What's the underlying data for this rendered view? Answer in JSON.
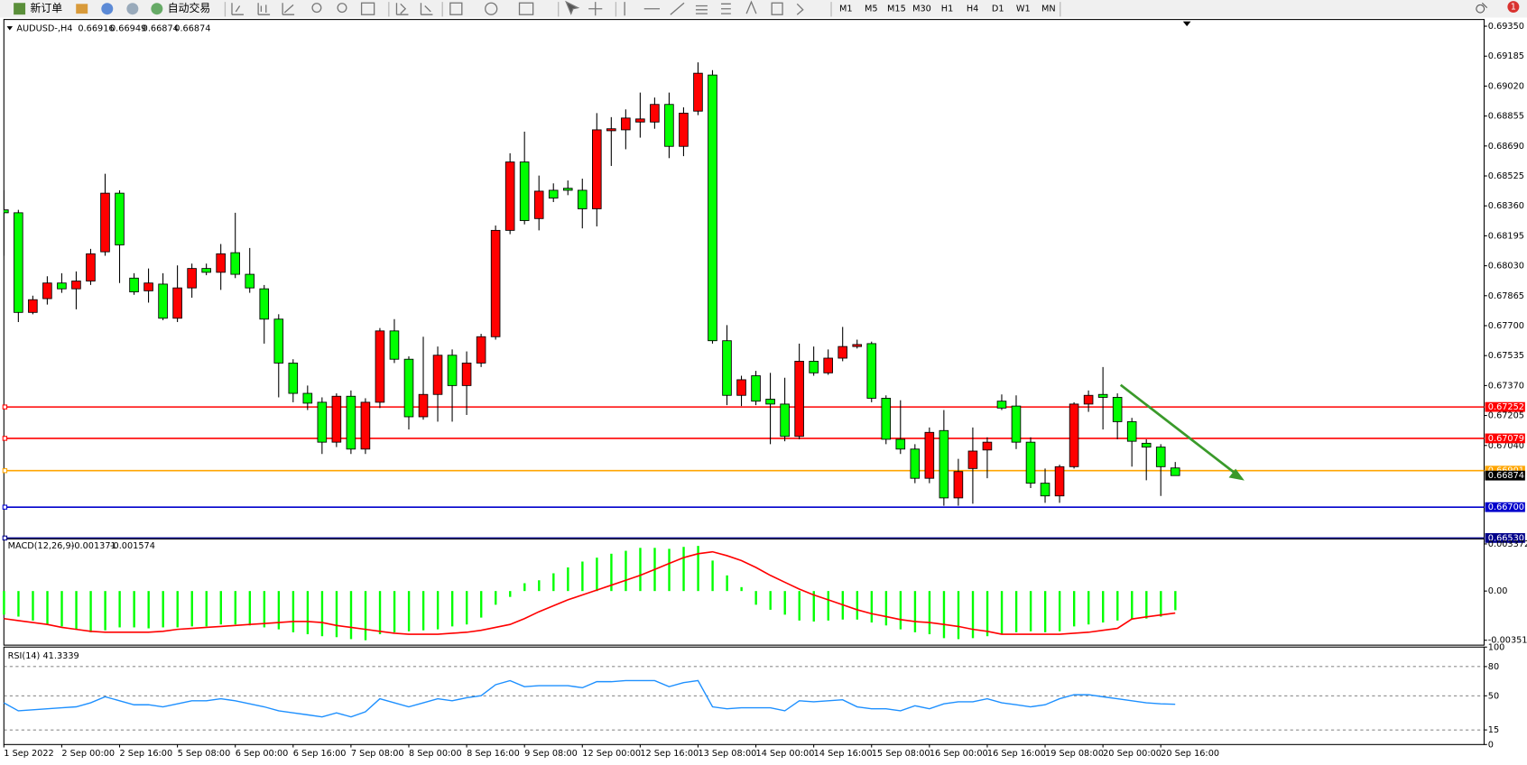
{
  "toolbar": {
    "new_order": "新订单",
    "auto_trading": "自动交易",
    "timeframes": [
      "M1",
      "M5",
      "M15",
      "M30",
      "H1",
      "H4",
      "D1",
      "W1",
      "MN"
    ],
    "alerts": 1
  },
  "chart_data": [
    {
      "type": "candlestick",
      "title": "AUDUSD-,H4",
      "categories": [
        "1 Sep 2022",
        null,
        null,
        null,
        "2 Sep 00:00",
        null,
        null,
        null,
        "2 Sep 16:00",
        null,
        null,
        null,
        "5 Sep 08:00",
        null,
        null,
        null,
        "6 Sep 00:00",
        null,
        null,
        null,
        "6 Sep 16:00",
        null,
        null,
        null,
        "7 Sep 08:00",
        null,
        null,
        null,
        "8 Sep 00:00",
        null,
        null,
        null,
        "8 Sep 16:00",
        null,
        null,
        null,
        "9 Sep 08:00",
        null,
        null,
        null,
        "12 Sep 00:00",
        null,
        null,
        null,
        "12 Sep 16:00",
        null,
        null,
        null,
        "13 Sep 08:00",
        null,
        null,
        null,
        "14 Sep 00:00",
        null,
        null,
        null,
        "14 Sep 16:00",
        null,
        null,
        null,
        "15 Sep 08:00",
        null,
        null,
        null,
        "16 Sep 00:00",
        null,
        null,
        null,
        "16 Sep 16:00",
        null,
        null,
        null,
        "19 Sep 08:00",
        null,
        null,
        null,
        "20 Sep 00:00",
        null,
        null,
        null,
        "20 Sep 16:00",
        null
      ],
      "ohlc": [
        [
          0.68338,
          0.68446,
          0.68085,
          0.68322
        ],
        [
          0.68322,
          0.68338,
          0.6772,
          0.67773
        ],
        [
          0.67773,
          0.67865,
          0.67763,
          0.67843
        ],
        [
          0.67849,
          0.67972,
          0.67816,
          0.67935
        ],
        [
          0.67935,
          0.67989,
          0.67881,
          0.67903
        ],
        [
          0.67903,
          0.67999,
          0.6779,
          0.67946
        ],
        [
          0.67946,
          0.68123,
          0.67924,
          0.68096
        ],
        [
          0.68107,
          0.68537,
          0.68085,
          0.6843
        ],
        [
          0.6843,
          0.68446,
          0.67935,
          0.68145
        ],
        [
          0.67962,
          0.67989,
          0.6787,
          0.67886
        ],
        [
          0.67892,
          0.68015,
          0.67827,
          0.67935
        ],
        [
          0.67929,
          0.67989,
          0.6773,
          0.67741
        ],
        [
          0.67741,
          0.68032,
          0.6772,
          0.67908
        ],
        [
          0.67908,
          0.68042,
          0.67854,
          0.68015
        ],
        [
          0.68015,
          0.68042,
          0.67978,
          0.67994
        ],
        [
          0.67994,
          0.6815,
          0.67897,
          0.68096
        ],
        [
          0.68102,
          0.68322,
          0.67962,
          0.67983
        ],
        [
          0.67983,
          0.68128,
          0.67881,
          0.67908
        ],
        [
          0.67903,
          0.67924,
          0.67601,
          0.67736
        ],
        [
          0.67736,
          0.67763,
          0.67305,
          0.67494
        ],
        [
          0.67494,
          0.67515,
          0.67278,
          0.67327
        ],
        [
          0.67327,
          0.6737,
          0.67235,
          0.67273
        ],
        [
          0.67278,
          0.67305,
          0.66993,
          0.67058
        ],
        [
          0.67058,
          0.67327,
          0.67031,
          0.67311
        ],
        [
          0.67311,
          0.67343,
          0.66993,
          0.6702
        ],
        [
          0.6702,
          0.673,
          0.66993,
          0.67278
        ],
        [
          0.67278,
          0.67687,
          0.67246,
          0.67671
        ],
        [
          0.67671,
          0.67736,
          0.67494,
          0.67515
        ],
        [
          0.67515,
          0.67531,
          0.67128,
          0.67198
        ],
        [
          0.67198,
          0.67639,
          0.67182,
          0.67321
        ],
        [
          0.67321,
          0.67585,
          0.67171,
          0.67537
        ],
        [
          0.67537,
          0.67569,
          0.67171,
          0.6737
        ],
        [
          0.6737,
          0.67558,
          0.67208,
          0.67494
        ],
        [
          0.67494,
          0.67655,
          0.67472,
          0.67639
        ],
        [
          0.67639,
          0.68252,
          0.67623,
          0.68225
        ],
        [
          0.68225,
          0.6865,
          0.68204,
          0.68602
        ],
        [
          0.68602,
          0.68769,
          0.68258,
          0.68279
        ],
        [
          0.6829,
          0.68527,
          0.68225,
          0.68441
        ],
        [
          0.68446,
          0.68484,
          0.68381,
          0.68403
        ],
        [
          0.68457,
          0.685,
          0.68419,
          0.68446
        ],
        [
          0.68446,
          0.6851,
          0.68236,
          0.68344
        ],
        [
          0.68344,
          0.68871,
          0.68247,
          0.68779
        ],
        [
          0.68774,
          0.68849,
          0.6858,
          0.68785
        ],
        [
          0.68779,
          0.68892,
          0.68672,
          0.68844
        ],
        [
          0.68822,
          0.68984,
          0.68736,
          0.68839
        ],
        [
          0.68822,
          0.68957,
          0.68785,
          0.68919
        ],
        [
          0.68919,
          0.68984,
          0.68623,
          0.68688
        ],
        [
          0.68688,
          0.68903,
          0.68634,
          0.68871
        ],
        [
          0.68882,
          0.69151,
          0.6886,
          0.69091
        ],
        [
          0.69081,
          0.69108,
          0.67601,
          0.67617
        ],
        [
          0.67617,
          0.67703,
          0.67262,
          0.67316
        ],
        [
          0.67316,
          0.67424,
          0.67257,
          0.67402
        ],
        [
          0.67424,
          0.67451,
          0.67262,
          0.67284
        ],
        [
          0.67295,
          0.6744,
          0.67047,
          0.67268
        ],
        [
          0.67268,
          0.67413,
          0.67063,
          0.6709
        ],
        [
          0.6709,
          0.67601,
          0.67074,
          0.67504
        ],
        [
          0.67504,
          0.67585,
          0.67424,
          0.6744
        ],
        [
          0.6744,
          0.67569,
          0.67429,
          0.67521
        ],
        [
          0.67521,
          0.67693,
          0.67504,
          0.67585
        ],
        [
          0.67585,
          0.67623,
          0.67574,
          0.67596
        ],
        [
          0.67601,
          0.67612,
          0.67278,
          0.673
        ],
        [
          0.673,
          0.67316,
          0.67047,
          0.67074
        ],
        [
          0.67074,
          0.67289,
          0.66993,
          0.6702
        ],
        [
          0.6702,
          0.67047,
          0.66832,
          0.66859
        ],
        [
          0.66859,
          0.67139,
          0.66832,
          0.67112
        ],
        [
          0.67122,
          0.67235,
          0.66708,
          0.66751
        ],
        [
          0.66751,
          0.66966,
          0.66708,
          0.66896
        ],
        [
          0.66913,
          0.67139,
          0.66719,
          0.67009
        ],
        [
          0.67015,
          0.67085,
          0.66859,
          0.67058
        ],
        [
          0.67284,
          0.67321,
          0.67235,
          0.67246
        ],
        [
          0.67257,
          0.67316,
          0.6702,
          0.67058
        ],
        [
          0.67058,
          0.67085,
          0.66805,
          0.66832
        ],
        [
          0.66832,
          0.66913,
          0.66724,
          0.66762
        ],
        [
          0.66762,
          0.66934,
          0.66724,
          0.66923
        ],
        [
          0.66923,
          0.67278,
          0.66913,
          0.67268
        ],
        [
          0.67268,
          0.67343,
          0.67225,
          0.67316
        ],
        [
          0.67321,
          0.67472,
          0.67128,
          0.67305
        ],
        [
          0.67305,
          0.67327,
          0.67074,
          0.67171
        ],
        [
          0.67171,
          0.67192,
          0.66923,
          0.67063
        ],
        [
          0.67052,
          0.67074,
          0.66848,
          0.67031
        ],
        [
          0.67031,
          0.67047,
          0.66762,
          0.66923
        ],
        [
          0.66916,
          0.66949,
          0.66874,
          0.66874
        ]
      ],
      "up_color": "#ff0000",
      "down_color": "#00ff00",
      "ylim": [
        0.66525,
        0.69387
      ],
      "yticks": [
        {
          "value": 0.6935,
          "label": "0.69350"
        },
        0.69185,
        {
          "value": 0.6902,
          "label": "0.69020"
        },
        0.68855,
        {
          "value": 0.6869,
          "label": "0.68690"
        },
        0.68525,
        {
          "value": 0.6836,
          "label": "0.68360"
        },
        0.68195,
        {
          "value": 0.6803,
          "label": "0.68030"
        },
        0.67865,
        {
          "value": 0.677,
          "label": "0.67700"
        },
        0.67535,
        {
          "value": 0.6737,
          "label": "0.67370"
        },
        0.67205,
        {
          "value": 0.6704,
          "label": "0.67040"
        }
      ],
      "hlines": [
        {
          "value": 0.67252,
          "color": "#ff0000"
        },
        {
          "value": 0.67079,
          "color": "#ff0000"
        },
        {
          "value": 0.66901,
          "color": "#ffa500"
        },
        {
          "value": 0.667,
          "label": "0.66700",
          "color": "#0000cc"
        },
        {
          "value": 0.6653,
          "label": "0.66530",
          "color": "#00008b"
        }
      ]
    },
    {
      "type": "macd",
      "title": "MACD(12,26,9)",
      "histogram": [
        -0.00169,
        -0.00183,
        -0.00211,
        -0.00239,
        -0.00253,
        -0.00274,
        -0.00295,
        -0.00281,
        -0.0026,
        -0.0026,
        -0.00267,
        -0.0026,
        -0.0026,
        -0.00253,
        -0.00253,
        -0.00239,
        -0.00239,
        -0.00246,
        -0.0026,
        -0.00274,
        -0.00295,
        -0.00309,
        -0.00323,
        -0.0033,
        -0.00344,
        -0.00352,
        -0.00309,
        -0.00295,
        -0.00288,
        -0.00281,
        -0.00274,
        -0.00253,
        -0.00239,
        -0.0019,
        -0.00098,
        -0.00042,
        0.00056,
        0.00077,
        0.00127,
        0.00169,
        0.00211,
        0.00239,
        0.00267,
        0.00288,
        0.00309,
        0.00309,
        0.00302,
        0.00316,
        0.00323,
        0.00218,
        0.00112,
        0.00028,
        -0.00098,
        -0.00134,
        -0.00169,
        -0.00211,
        -0.00218,
        -0.00211,
        -0.00204,
        -0.00204,
        -0.00225,
        -0.00246,
        -0.00274,
        -0.00295,
        -0.00309,
        -0.00337,
        -0.00344,
        -0.00337,
        -0.00323,
        -0.00309,
        -0.00295,
        -0.00288,
        -0.00295,
        -0.00288,
        -0.00253,
        -0.00239,
        -0.00225,
        -0.00211,
        -0.00204,
        -0.00197,
        -0.00183,
        -0.001371
      ],
      "signal": [
        -0.00197,
        -0.00211,
        -0.00225,
        -0.00239,
        -0.0026,
        -0.00274,
        -0.00288,
        -0.00295,
        -0.00295,
        -0.00295,
        -0.00295,
        -0.00288,
        -0.00274,
        -0.00267,
        -0.0026,
        -0.00253,
        -0.00246,
        -0.00239,
        -0.00232,
        -0.00225,
        -0.00218,
        -0.00218,
        -0.00225,
        -0.00246,
        -0.0026,
        -0.00274,
        -0.00288,
        -0.00302,
        -0.00309,
        -0.00309,
        -0.00309,
        -0.00302,
        -0.00295,
        -0.00281,
        -0.0026,
        -0.00239,
        -0.00197,
        -0.00148,
        -0.00105,
        -0.00063,
        -0.00028,
        7e-05,
        0.00042,
        0.00077,
        0.00112,
        0.00155,
        0.00197,
        0.00239,
        0.00267,
        0.00281,
        0.00253,
        0.00218,
        0.00169,
        0.00112,
        0.00063,
        0.00014,
        -0.00028,
        -0.00063,
        -0.00098,
        -0.00134,
        -0.00162,
        -0.00183,
        -0.00204,
        -0.00218,
        -0.00225,
        -0.00239,
        -0.00253,
        -0.00274,
        -0.00288,
        -0.00309,
        -0.00309,
        -0.00309,
        -0.00309,
        -0.00309,
        -0.00302,
        -0.00295,
        -0.00281,
        -0.00267,
        -0.002,
        -0.00185,
        -0.00171,
        -0.001574
      ],
      "histogram_color": "#00ff00",
      "signal_color": "#ff0000",
      "ylim": [
        -0.00387,
        0.00373
      ],
      "yticks": [
        0.003372,
        {
          "value": 0,
          "label": "0.00"
        },
        -0.003519
      ]
    },
    {
      "type": "line",
      "title": "RSI(14)",
      "values": [
        42.8,
        34.6,
        35.6,
        36.7,
        37.7,
        38.7,
        42.8,
        49.0,
        44.9,
        40.8,
        40.8,
        38.7,
        41.8,
        44.9,
        44.9,
        47.0,
        44.9,
        41.8,
        38.7,
        34.6,
        32.5,
        30.5,
        28.4,
        32.5,
        28.4,
        33.6,
        47.0,
        42.8,
        38.7,
        42.8,
        47.0,
        44.9,
        48.0,
        50.1,
        61.4,
        65.6,
        59.4,
        60.4,
        60.4,
        60.4,
        58.3,
        64.5,
        64.5,
        65.6,
        65.6,
        65.6,
        59.4,
        63.5,
        65.6,
        38.7,
        36.7,
        37.7,
        37.7,
        37.7,
        34.6,
        44.9,
        43.9,
        44.9,
        45.9,
        38.7,
        36.7,
        36.7,
        34.6,
        39.8,
        36.7,
        41.8,
        43.9,
        43.9,
        47.0,
        42.8,
        40.8,
        38.7,
        40.8,
        47.0,
        51.1,
        51.1,
        49.0,
        47.0,
        44.9,
        42.8,
        41.8,
        41.3339
      ],
      "color": "#1e90ff",
      "ylim": [
        0,
        100
      ],
      "yticks": [
        100,
        80,
        50,
        15,
        0
      ]
    }
  ]
}
